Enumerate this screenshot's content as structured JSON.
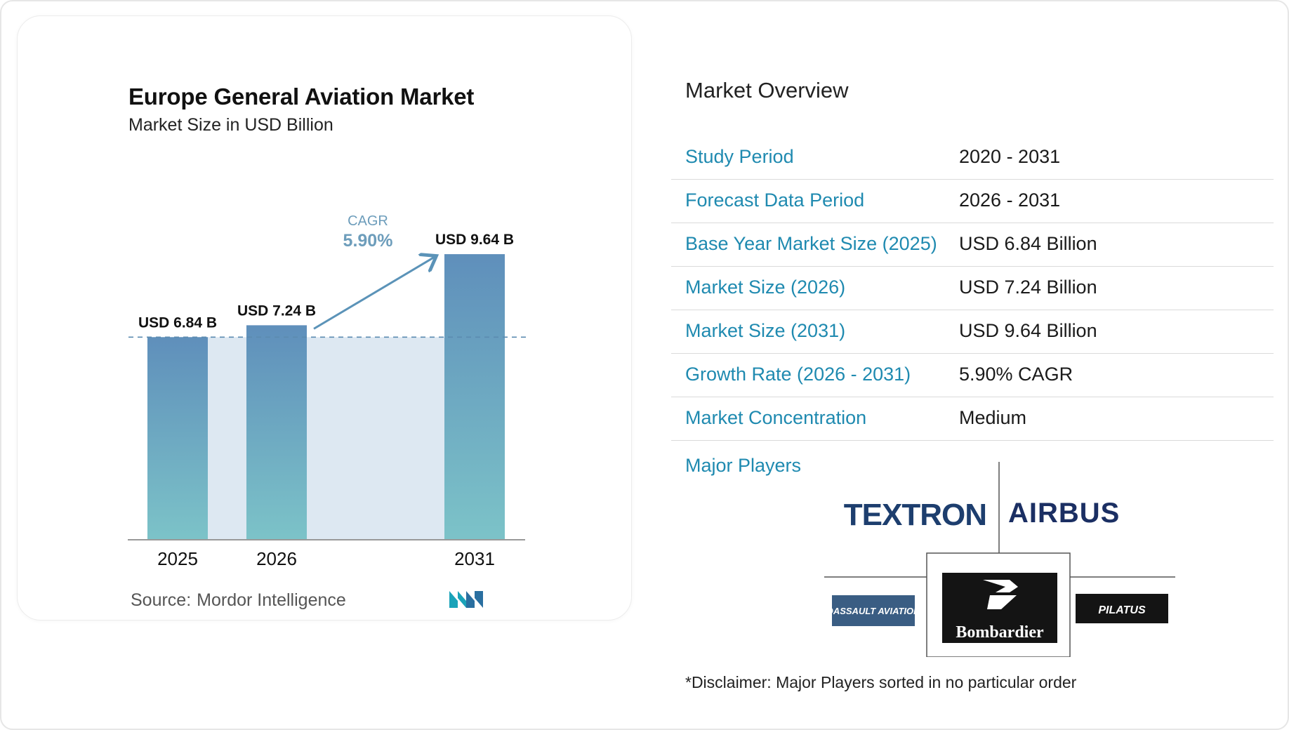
{
  "chart_data": {
    "type": "bar",
    "title": "Europe General Aviation Market",
    "subtitle": "Market Size in USD Billion",
    "categories": [
      "2025",
      "2026",
      "2031"
    ],
    "values": [
      6.84,
      7.24,
      9.64
    ],
    "data_labels": [
      "USD 6.84 B",
      "USD 7.24 B",
      "USD 9.64 B"
    ],
    "ylim": [
      0,
      10.4
    ],
    "grid": false,
    "annotation": {
      "label": "CAGR",
      "value": "5.90%"
    },
    "colors": {
      "bar_top": "#5f8fbb",
      "bar_bottom": "#7cc3c8",
      "band": "#dde8f2",
      "accent": "#5b93b8"
    }
  },
  "source": {
    "label": "Source:",
    "name": "Mordor Intelligence"
  },
  "overview": {
    "title": "Market Overview",
    "rows": [
      {
        "label": "Study Period",
        "value": "2020 - 2031"
      },
      {
        "label": "Forecast Data Period",
        "value": "2026 - 2031"
      },
      {
        "label": "Base Year Market Size (2025)",
        "value": "USD 6.84 Billion"
      },
      {
        "label": "Market Size (2026)",
        "value": "USD 7.24 Billion"
      },
      {
        "label": "Market Size (2031)",
        "value": "USD 9.64 Billion"
      },
      {
        "label": "Growth Rate (2026 - 2031)",
        "value": "5.90% CAGR"
      },
      {
        "label": "Market Concentration",
        "value": "Medium"
      }
    ]
  },
  "players": {
    "title": "Major Players",
    "logos": [
      "TEXTRON",
      "AIRBUS",
      "DASSAULT AVIATION",
      "Bombardier",
      "PILATUS"
    ]
  },
  "disclaimer": "*Disclaimer: Major Players sorted in no particular order"
}
